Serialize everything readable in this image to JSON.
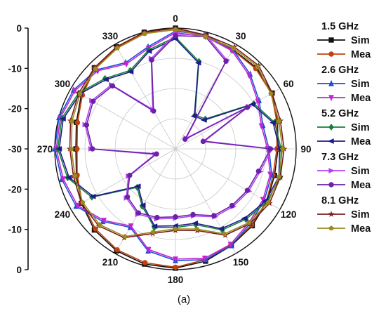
{
  "chart_data": {
    "type": "polar-line",
    "title": "",
    "caption": "(a)",
    "radial_axis": {
      "range": [
        -40,
        0
      ],
      "tick_values": [
        0,
        -10,
        -20,
        -30,
        -20,
        -10,
        0
      ],
      "tick_labels": [
        "0",
        "-10",
        "-20",
        "-30",
        "-20",
        "-10",
        "0"
      ]
    },
    "angular_axis": {
      "unit": "deg",
      "direction": "clockwise",
      "zero_at": "top",
      "ticks": [
        0,
        30,
        60,
        90,
        120,
        150,
        180,
        210,
        240,
        270,
        300,
        330
      ],
      "tick_labels": [
        "0",
        "30",
        "60",
        "90",
        "120",
        "150",
        "180",
        "210",
        "240",
        "270",
        "300",
        "330"
      ]
    },
    "grid": true,
    "legend_position": "right",
    "angles": [
      0,
      15,
      30,
      45,
      60,
      75,
      90,
      105,
      120,
      135,
      150,
      165,
      180,
      195,
      210,
      225,
      240,
      255,
      270,
      285,
      300,
      315,
      330,
      345
    ],
    "groups": [
      {
        "label": "1.5 GHz",
        "series": [
          {
            "name": "Sim",
            "color": "#111111",
            "marker": "square",
            "values": [
              0,
              -1,
              -2,
              -2,
              -3,
              -5,
              -6,
              -6,
              -5,
              -4,
              -3,
              -1.5,
              -0.5,
              -0.5,
              -1,
              -2,
              -4,
              -6,
              -7,
              -6,
              -4,
              -2,
              -1,
              0
            ]
          },
          {
            "name": "Mea",
            "color": "#c2410c",
            "marker": "circle",
            "values": [
              -0.5,
              -1.2,
              -2.2,
              -2.4,
              -3.3,
              -5.2,
              -6.4,
              -6.5,
              -5.2,
              -4.3,
              -3.3,
              -2,
              -0.8,
              -1,
              -1.4,
              -2.5,
              -4.3,
              -6.3,
              -7.4,
              -6.4,
              -4.4,
              -2.3,
              -1.3,
              -0.4
            ]
          }
        ]
      },
      {
        "label": "2.6 GHz",
        "series": [
          {
            "name": "Sim",
            "color": "#1d4ed8",
            "marker": "triangle-up",
            "values": [
              -1,
              -1,
              -2,
              -5,
              -8,
              -10,
              -9,
              -7,
              -6,
              -5,
              -3,
              -2,
              -3,
              -5,
              -10,
              -6,
              -2,
              -1,
              0,
              0,
              -1,
              -3,
              -7,
              -5
            ]
          },
          {
            "name": "Mea",
            "color": "#c026d3",
            "marker": "triangle-down",
            "values": [
              -1.5,
              -1.5,
              -2.5,
              -5.5,
              -8.5,
              -10.5,
              -9.5,
              -7.5,
              -6.5,
              -5.5,
              -3.5,
              -2.5,
              -3.5,
              -5.5,
              -10.5,
              -6.5,
              -2.5,
              -1.5,
              -0.5,
              -0.5,
              -1.5,
              -3.5,
              -7.5,
              -5.5
            ]
          }
        ]
      },
      {
        "label": "5.2 GHz",
        "series": [
          {
            "name": "Sim",
            "color": "#15803d",
            "marker": "diamond",
            "values": [
              -3,
              -10,
              -27,
              -26,
              -10,
              -6,
              -5,
              -4,
              -5,
              -7,
              -9,
              -14,
              -14,
              -13,
              -18,
              -22,
              -8,
              -3,
              -1,
              -1,
              -3,
              -7,
              -10,
              -6
            ]
          },
          {
            "name": "Mea",
            "color": "#1e1b8a",
            "marker": "triangle-left",
            "values": [
              -3.5,
              -10.5,
              -27.5,
              -26.5,
              -10.5,
              -6.5,
              -5.5,
              -4.5,
              -5.5,
              -7.5,
              -9.5,
              -14.5,
              -14.5,
              -13.5,
              -18.5,
              -22.5,
              -8.5,
              -3.5,
              -1.5,
              -1.5,
              -3.5,
              -7.5,
              -10.5,
              -6.5
            ]
          }
        ]
      },
      {
        "label": "7.3 GHz",
        "series": [
          {
            "name": "Sim",
            "color": "#b045f0",
            "marker": "triangle-right",
            "values": [
              -2,
              -1,
              -6,
              -35,
              -12,
              -30,
              -8,
              -11,
              -12,
              -13,
              -14,
              -17,
              -17,
              -16,
              -15,
              -17,
              -22,
              -33,
              -12,
              -9,
              -8,
              -10,
              -25,
              -9
            ]
          },
          {
            "name": "Mea",
            "color": "#6b21a8",
            "marker": "circle",
            "values": [
              -2.5,
              -1.5,
              -6.5,
              -35.5,
              -12.5,
              -30.5,
              -8.5,
              -11.5,
              -12.5,
              -13.5,
              -14.5,
              -17.5,
              -17.5,
              -16.5,
              -15.5,
              -17.5,
              -22.5,
              -33.5,
              -12.5,
              -9.5,
              -8.5,
              -10.5,
              -25.5,
              -9.5
            ]
          }
        ]
      },
      {
        "label": "8.1 GHz",
        "series": [
          {
            "name": "Sim",
            "color": "#7a1f1f",
            "marker": "star",
            "values": [
              0,
              -1,
              -1,
              -1,
              -3,
              -4,
              -4,
              -4,
              -4,
              -5,
              -7,
              -12,
              -13,
              -11,
              -6,
              -4,
              -4,
              -5,
              -5,
              -4,
              -3,
              -2,
              -1,
              0
            ]
          },
          {
            "name": "Mea",
            "color": "#9a8a1f",
            "marker": "pentagon",
            "values": [
              -0.5,
              -1.5,
              -1.5,
              -1.5,
              -3.5,
              -4.5,
              -4.5,
              -4.5,
              -4.5,
              -5.5,
              -7.5,
              -12.5,
              -13.5,
              -11.5,
              -6.5,
              -4.5,
              -4.5,
              -5.5,
              -5.5,
              -4.5,
              -3.5,
              -2.5,
              -1.5,
              -0.5
            ]
          }
        ]
      }
    ]
  }
}
